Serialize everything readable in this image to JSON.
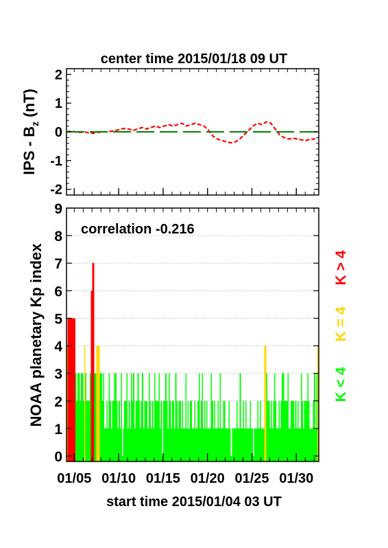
{
  "title": "center time 2015/01/18 09 UT",
  "footer": "start time 2015/01/04 03 UT",
  "colors": {
    "ips_trace": "#ff0000",
    "zero_line": "#008000",
    "k_low": "#00ff00",
    "k_mid": "#ffd700",
    "k_high": "#ff0000"
  },
  "chart_data": [
    {
      "type": "line",
      "ylabel": "IPS - B",
      "ylabel_sub": "z",
      "ylabel_unit": " (nT)",
      "ylim": [
        -2.2,
        2.2
      ],
      "yticks": [
        "2",
        "1",
        "0",
        "-1",
        "-2"
      ],
      "xlim": [
        0,
        28.4
      ],
      "series": [
        {
          "style": "dashed-red",
          "x": [
            0,
            0.5,
            1,
            1.5,
            2,
            2.5,
            3,
            3.5,
            4,
            4.5,
            5,
            5.5,
            6,
            6.5,
            7,
            7.5,
            8,
            8.5,
            9,
            9.5,
            10,
            10.5,
            11,
            11.5,
            12,
            12.5,
            13,
            13.5,
            14,
            14.5,
            15,
            15.5,
            16,
            16.5,
            17,
            17.5,
            18,
            18.5,
            19,
            19.5,
            20,
            20.5,
            21,
            21.5,
            22,
            22.5,
            23,
            23.5,
            24,
            24.5,
            25,
            25.5,
            26,
            26.5,
            27,
            27.5,
            28
          ],
          "values": [
            0.0,
            0.02,
            0.0,
            -0.02,
            0.0,
            -0.03,
            -0.05,
            -0.02,
            0.0,
            0.0,
            0.02,
            0.05,
            0.08,
            0.12,
            0.1,
            0.05,
            0.1,
            0.15,
            0.1,
            0.15,
            0.2,
            0.15,
            0.2,
            0.25,
            0.2,
            0.25,
            0.3,
            0.2,
            0.25,
            0.3,
            0.25,
            0.2,
            0.05,
            -0.15,
            -0.25,
            -0.3,
            -0.35,
            -0.38,
            -0.35,
            -0.25,
            -0.1,
            0.05,
            0.2,
            0.3,
            0.25,
            0.35,
            0.3,
            0.1,
            -0.1,
            -0.2,
            -0.25,
            -0.22,
            -0.25,
            -0.28,
            -0.3,
            -0.25,
            -0.25
          ]
        },
        {
          "style": "dashed-green",
          "x": [
            0,
            28.4
          ],
          "values": [
            0,
            0
          ]
        }
      ]
    },
    {
      "type": "bar",
      "ylabel": "NOAA planetary Kp index",
      "annotation": "correlation -0.216",
      "ylim": [
        -0.2,
        9
      ],
      "yticks": [
        "0",
        "1",
        "2",
        "3",
        "4",
        "5",
        "6",
        "7",
        "8",
        "9"
      ],
      "xlim": [
        0,
        28.4
      ],
      "xtick_labels": [
        "01/05",
        "01/10",
        "01/15",
        "01/20",
        "01/25",
        "01/30"
      ],
      "xtick_values": [
        0.875,
        5.875,
        10.875,
        15.875,
        20.875,
        25.875
      ],
      "kp_values": [
        4,
        5,
        5,
        5,
        5,
        5,
        5,
        5,
        3,
        2,
        3,
        3,
        2,
        3,
        3,
        2,
        4,
        3,
        2,
        2,
        2,
        3,
        6,
        7,
        7,
        3,
        3,
        4,
        4,
        4,
        3,
        3,
        2,
        3,
        1,
        1,
        2,
        1,
        3,
        2,
        1,
        2,
        2,
        3,
        3,
        2,
        1,
        2,
        1,
        3,
        0,
        1,
        2,
        2,
        3,
        1,
        2,
        1,
        3,
        2,
        3,
        1,
        2,
        2,
        3,
        2,
        1,
        2,
        3,
        1,
        2,
        2,
        2,
        1,
        3,
        2,
        1,
        2,
        1,
        3,
        2,
        2,
        2,
        3,
        1,
        2,
        0,
        2,
        2,
        3,
        2,
        1,
        3,
        2,
        1,
        2,
        2,
        1,
        3,
        2,
        1,
        2,
        2,
        1,
        2,
        1,
        1,
        3,
        1,
        2,
        1,
        2,
        2,
        1,
        1,
        2,
        1,
        1,
        2,
        3,
        1,
        2,
        3,
        1,
        2,
        1,
        2,
        1,
        1,
        1,
        3,
        2,
        1,
        2,
        1,
        1,
        2,
        1,
        3,
        1,
        1,
        2,
        2,
        1,
        1,
        1,
        2,
        1,
        0,
        1,
        1,
        1,
        1,
        2,
        1,
        1,
        3,
        1,
        1,
        2,
        1,
        2,
        1,
        1,
        1,
        2,
        1,
        1,
        0,
        1,
        1,
        1,
        2,
        1,
        2,
        1,
        1,
        1,
        4,
        4,
        3,
        2,
        2,
        1,
        2,
        1,
        2,
        3,
        2,
        1,
        1,
        2,
        1,
        2,
        3,
        3,
        2,
        2,
        2,
        3,
        1,
        1,
        2,
        2,
        2,
        1,
        2,
        1,
        2,
        1,
        1,
        3,
        2,
        1,
        2,
        2,
        2,
        3,
        2,
        1,
        1,
        1,
        2,
        3,
        1,
        3,
        4,
        3,
        2,
        3,
        2,
        3,
        2,
        3,
        3,
        2,
        2,
        3,
        2,
        1,
        3,
        2,
        1,
        2,
        3,
        2,
        1,
        2,
        1,
        1,
        2,
        2,
        2,
        3,
        4,
        3,
        3,
        3,
        2,
        2,
        3,
        3,
        2,
        1,
        2,
        1,
        2,
        3,
        1,
        2,
        1,
        1,
        2,
        2,
        2,
        1,
        2,
        3,
        2,
        1,
        2,
        4,
        3,
        2,
        3,
        2,
        3,
        1,
        2,
        2,
        3,
        2,
        3
      ],
      "bar_width_units": 0.125,
      "legend": [
        "K < 4",
        "K = 4",
        "K > 4"
      ]
    }
  ]
}
